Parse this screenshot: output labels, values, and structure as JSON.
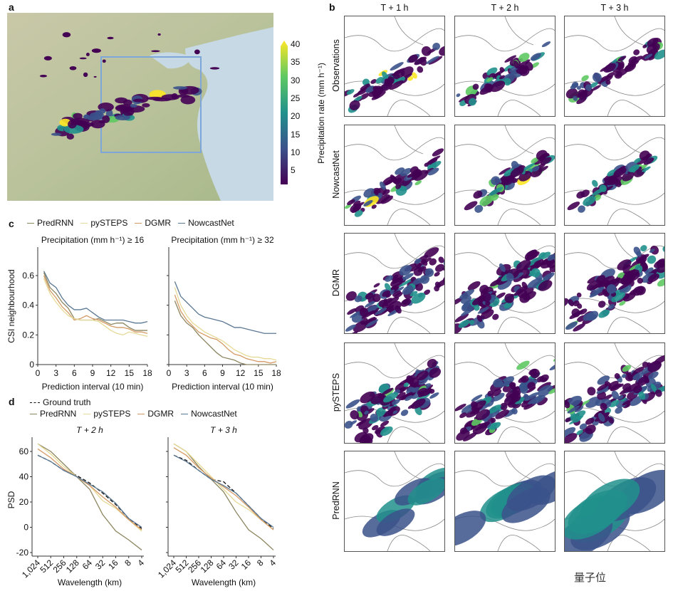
{
  "panel_labels": {
    "a": "a",
    "b": "b",
    "c": "c",
    "d": "d"
  },
  "colorbar": {
    "label": "Precipitation rate (mm h⁻¹)",
    "ticks": [
      "40",
      "35",
      "30",
      "25",
      "20",
      "15",
      "10",
      "5"
    ],
    "colormap": "viridis",
    "range": [
      0,
      40
    ]
  },
  "panel_b": {
    "columns": [
      "T + 1 h",
      "T + 2 h",
      "T + 3 h"
    ],
    "rows": [
      "Observations",
      "NowcastNet",
      "DGMR",
      "pySTEPS",
      "PredRNN"
    ]
  },
  "colors": {
    "PredRNN": "#8c8660",
    "pySTEPS": "#e6da96",
    "DGMR": "#d59a64",
    "NowcastNet": "#5b7892",
    "Ground truth": "#111111"
  },
  "watermark": "量子位",
  "chart_data": [
    {
      "type": "line",
      "panel": "c",
      "legend": [
        "PredRNN",
        "pySTEPS",
        "DGMR",
        "NowcastNet"
      ],
      "subplots": [
        {
          "title": "Precipitation (mm h⁻¹) ≥ 16",
          "xlabel": "Prediction interval (10 min)",
          "ylabel": "CSI neighbourhood",
          "xlim": [
            0,
            18
          ],
          "ylim": [
            0,
            0.75
          ],
          "xticks": [
            "0",
            "3",
            "6",
            "9",
            "12",
            "15",
            "18"
          ],
          "yticks": [
            "0",
            "0.2",
            "0.4",
            "0.6"
          ],
          "x": [
            1,
            2,
            3,
            4,
            5,
            6,
            7,
            8,
            9,
            10,
            11,
            12,
            13,
            14,
            15,
            16,
            17,
            18
          ],
          "series": [
            {
              "name": "NowcastNet",
              "values": [
                0.63,
                0.55,
                0.52,
                0.45,
                0.4,
                0.37,
                0.37,
                0.38,
                0.35,
                0.32,
                0.3,
                0.3,
                0.3,
                0.3,
                0.29,
                0.28,
                0.28,
                0.29
              ]
            },
            {
              "name": "PredRNN",
              "values": [
                0.62,
                0.52,
                0.48,
                0.42,
                0.38,
                0.31,
                0.3,
                0.3,
                0.3,
                0.31,
                0.29,
                0.27,
                0.28,
                0.28,
                0.25,
                0.23,
                0.23,
                0.23
              ]
            },
            {
              "name": "DGMR",
              "values": [
                0.6,
                0.5,
                0.45,
                0.39,
                0.35,
                0.3,
                0.31,
                0.33,
                0.31,
                0.3,
                0.28,
                0.26,
                0.25,
                0.25,
                0.24,
                0.22,
                0.22,
                0.21
              ]
            },
            {
              "name": "pySTEPS",
              "values": [
                0.58,
                0.48,
                0.42,
                0.37,
                0.33,
                0.31,
                0.3,
                0.3,
                0.3,
                0.29,
                0.26,
                0.23,
                0.21,
                0.2,
                0.22,
                0.21,
                0.2,
                0.19
              ]
            }
          ]
        },
        {
          "title": "Precipitation (mm h⁻¹) ≥ 32",
          "xlabel": "Prediction interval (10 min)",
          "ylabel": "",
          "xlim": [
            0,
            18
          ],
          "ylim": [
            0,
            0.75
          ],
          "xticks": [
            "0",
            "3",
            "6",
            "9",
            "12",
            "15",
            "18"
          ],
          "yticks": [],
          "x": [
            1,
            2,
            3,
            4,
            5,
            6,
            7,
            8,
            9,
            10,
            11,
            12,
            13,
            14,
            15,
            16,
            17,
            18
          ],
          "series": [
            {
              "name": "NowcastNet",
              "values": [
                0.56,
                0.46,
                0.42,
                0.38,
                0.34,
                0.32,
                0.31,
                0.3,
                0.29,
                0.27,
                0.25,
                0.25,
                0.24,
                0.23,
                0.22,
                0.21,
                0.21,
                0.21
              ]
            },
            {
              "name": "PredRNN",
              "values": [
                0.43,
                0.33,
                0.28,
                0.25,
                0.2,
                0.16,
                0.12,
                0.08,
                0.05,
                0.04,
                0.03,
                0.01,
                0.0,
                0.0,
                0.0,
                0.0,
                0.0,
                0.0
              ]
            },
            {
              "name": "DGMR",
              "values": [
                0.47,
                0.36,
                0.3,
                0.26,
                0.22,
                0.2,
                0.18,
                0.17,
                0.14,
                0.1,
                0.07,
                0.06,
                0.04,
                0.03,
                0.02,
                0.02,
                0.01,
                0.02
              ]
            },
            {
              "name": "pySTEPS",
              "values": [
                0.52,
                0.4,
                0.33,
                0.28,
                0.25,
                0.22,
                0.2,
                0.18,
                0.16,
                0.13,
                0.1,
                0.08,
                0.06,
                0.05,
                0.05,
                0.04,
                0.04,
                0.03
              ]
            }
          ]
        }
      ]
    },
    {
      "type": "line",
      "panel": "d",
      "legend": [
        "Ground truth",
        "PredRNN",
        "pySTEPS",
        "DGMR",
        "NowcastNet"
      ],
      "subplots": [
        {
          "title": "T + 2 h",
          "xlabel": "Wavelength (km)",
          "ylabel": "PSD",
          "ylim": [
            -22,
            70
          ],
          "x": [
            "1,024",
            "512",
            "256",
            "128",
            "64",
            "32",
            "16",
            "8",
            "4"
          ],
          "yticks": [
            "-20",
            "0",
            "20",
            "40",
            "60"
          ],
          "series": [
            {
              "name": "Ground truth",
              "values": [
                57,
                52,
                45,
                41,
                35,
                27,
                18,
                7,
                -1
              ]
            },
            {
              "name": "PredRNN",
              "values": [
                66,
                60,
                50,
                40,
                30,
                10,
                -3,
                -10,
                -18
              ]
            },
            {
              "name": "pySTEPS",
              "values": [
                66,
                58,
                48,
                40,
                33,
                21,
                15,
                6,
                -3
              ]
            },
            {
              "name": "DGMR",
              "values": [
                62,
                55,
                46,
                40,
                33,
                24,
                16,
                6,
                -2
              ]
            },
            {
              "name": "NowcastNet",
              "values": [
                57,
                52,
                45,
                40,
                34,
                28,
                19,
                7,
                0
              ]
            }
          ]
        },
        {
          "title": "T + 3 h",
          "xlabel": "Wavelength (km)",
          "ylabel": "",
          "ylim": [
            -22,
            70
          ],
          "x": [
            "1,024",
            "512",
            "256",
            "128",
            "64",
            "32",
            "16",
            "8",
            "4"
          ],
          "yticks": [],
          "series": [
            {
              "name": "Ground truth",
              "values": [
                57,
                53,
                45,
                38,
                36,
                27,
                17,
                7,
                -1
              ]
            },
            {
              "name": "PredRNN",
              "values": [
                66,
                60,
                48,
                38,
                28,
                12,
                -2,
                -9,
                -18
              ]
            },
            {
              "name": "pySTEPS",
              "values": [
                66,
                60,
                50,
                40,
                30,
                20,
                14,
                6,
                -2
              ]
            },
            {
              "name": "DGMR",
              "values": [
                63,
                57,
                47,
                39,
                32,
                25,
                16,
                6,
                -2
              ]
            },
            {
              "name": "NowcastNet",
              "values": [
                57,
                52,
                45,
                38,
                33,
                27,
                17,
                7,
                0
              ]
            }
          ]
        }
      ]
    }
  ]
}
